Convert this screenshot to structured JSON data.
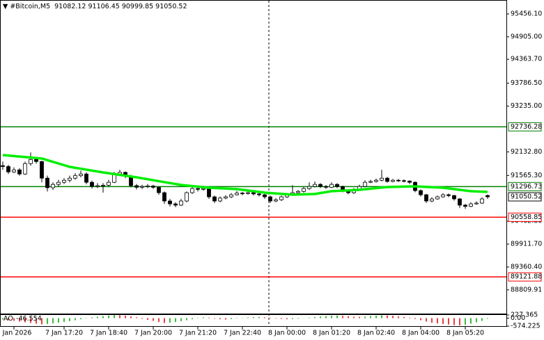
{
  "chart_data": {
    "type": "candlestick",
    "symbol": "#Bitcoin,M5",
    "ohlc": [
      [
        91800,
        91900,
        91700,
        91780
      ],
      [
        91780,
        91820,
        91600,
        91650
      ],
      [
        91650,
        91760,
        91620,
        91700
      ],
      [
        91700,
        91740,
        91560,
        91600
      ],
      [
        91600,
        91900,
        91580,
        91850
      ],
      [
        91850,
        92120,
        91800,
        91950
      ],
      [
        91950,
        92000,
        91850,
        91900
      ],
      [
        91900,
        91920,
        91400,
        91500
      ],
      [
        91500,
        91560,
        91180,
        91270
      ],
      [
        91270,
        91400,
        91220,
        91350
      ],
      [
        91350,
        91460,
        91300,
        91400
      ],
      [
        91400,
        91500,
        91360,
        91450
      ],
      [
        91450,
        91560,
        91400,
        91500
      ],
      [
        91500,
        91620,
        91460,
        91560
      ],
      [
        91560,
        91680,
        91520,
        91600
      ],
      [
        91600,
        91640,
        91350,
        91400
      ],
      [
        91400,
        91440,
        91250,
        91300
      ],
      [
        91300,
        91380,
        91260,
        91320
      ],
      [
        91320,
        91380,
        91150,
        91330
      ],
      [
        91330,
        91460,
        91300,
        91400
      ],
      [
        91400,
        91650,
        91380,
        91600
      ],
      [
        91600,
        91700,
        91560,
        91640
      ],
      [
        91640,
        91660,
        91500,
        91550
      ],
      [
        91550,
        91580,
        91280,
        91320
      ],
      [
        91320,
        91360,
        91230,
        91280
      ],
      [
        91280,
        91340,
        91240,
        91300
      ],
      [
        91300,
        91360,
        91260,
        91310
      ],
      [
        91310,
        91340,
        91240,
        91280
      ],
      [
        91280,
        91300,
        91100,
        91150
      ],
      [
        91150,
        91180,
        90880,
        90950
      ],
      [
        90950,
        91000,
        90820,
        90880
      ],
      [
        90880,
        90920,
        90800,
        90850
      ],
      [
        90850,
        91000,
        90830,
        90950
      ],
      [
        90950,
        91180,
        90920,
        91150
      ],
      [
        91150,
        91300,
        91120,
        91250
      ],
      [
        91250,
        91300,
        91180,
        91230
      ],
      [
        91230,
        91320,
        91200,
        91250
      ],
      [
        91250,
        91270,
        91000,
        91050
      ],
      [
        91050,
        91080,
        90900,
        90950
      ],
      [
        90950,
        91060,
        90920,
        91020
      ],
      [
        91020,
        91090,
        90990,
        91050
      ],
      [
        91050,
        91140,
        91020,
        91100
      ],
      [
        91100,
        91190,
        91080,
        91140
      ],
      [
        91140,
        91170,
        91090,
        91130
      ],
      [
        91130,
        91190,
        91100,
        91150
      ],
      [
        91150,
        91170,
        91080,
        91120
      ],
      [
        91120,
        91140,
        91060,
        91100
      ],
      [
        91100,
        91120,
        91000,
        91050
      ],
      [
        91050,
        91080,
        90900,
        90950
      ],
      [
        90950,
        91020,
        90920,
        90980
      ],
      [
        90980,
        91080,
        90950,
        91050
      ],
      [
        91050,
        91140,
        91020,
        91100
      ],
      [
        91100,
        91330,
        91080,
        91150
      ],
      [
        91150,
        91220,
        91120,
        91180
      ],
      [
        91180,
        91290,
        91150,
        91250
      ],
      [
        91250,
        91400,
        91220,
        91300
      ],
      [
        91300,
        91420,
        91280,
        91350
      ],
      [
        91350,
        91380,
        91260,
        91300
      ],
      [
        91300,
        91330,
        91240,
        91280
      ],
      [
        91280,
        91400,
        91260,
        91350
      ],
      [
        91350,
        91380,
        91260,
        91300
      ],
      [
        91300,
        91320,
        91160,
        91200
      ],
      [
        91200,
        91220,
        91110,
        91150
      ],
      [
        91150,
        91260,
        91120,
        91230
      ],
      [
        91230,
        91340,
        91200,
        91300
      ],
      [
        91300,
        91450,
        91280,
        91400
      ],
      [
        91400,
        91460,
        91380,
        91420
      ],
      [
        91420,
        91490,
        91390,
        91450
      ],
      [
        91450,
        91700,
        91420,
        91500
      ],
      [
        91500,
        91530,
        91390,
        91420
      ],
      [
        91420,
        91480,
        91400,
        91450
      ],
      [
        91450,
        91480,
        91410,
        91440
      ],
      [
        91440,
        91470,
        91400,
        91430
      ],
      [
        91430,
        91450,
        91360,
        91400
      ],
      [
        91400,
        91420,
        91160,
        91200
      ],
      [
        91200,
        91230,
        91060,
        91100
      ],
      [
        91100,
        91120,
        90900,
        90950
      ],
      [
        90950,
        91040,
        90920,
        91000
      ],
      [
        91000,
        91080,
        90980,
        91050
      ],
      [
        91050,
        91140,
        91030,
        91100
      ],
      [
        91100,
        91130,
        91040,
        91080
      ],
      [
        91080,
        91100,
        90960,
        91000
      ],
      [
        91000,
        91020,
        90780,
        90850
      ],
      [
        90850,
        90880,
        90760,
        90820
      ],
      [
        90820,
        90920,
        90800,
        90880
      ],
      [
        90880,
        90940,
        90860,
        90900
      ],
      [
        90900,
        91040,
        90880,
        91000
      ],
      [
        91082.12,
        91106.45,
        90999.85,
        91050.52
      ]
    ],
    "ma": {
      "color": "#00ee00",
      "x": [
        0,
        7,
        12,
        18,
        24,
        29,
        32,
        37,
        42,
        47,
        52,
        56,
        59,
        64,
        69,
        74,
        79,
        84,
        87
      ],
      "values": [
        92057,
        91973,
        91772,
        91638,
        91520,
        91404,
        91337,
        91270,
        91236,
        91152,
        91102,
        91119,
        91186,
        91219,
        91286,
        91303,
        91270,
        91186,
        91169
      ]
    },
    "levels": [
      {
        "value": 92736.28,
        "color": "#008000"
      },
      {
        "value": 91296.73,
        "color": "#008000"
      },
      {
        "value": 90558.85,
        "color": "#ff0000"
      },
      {
        "value": 89121.88,
        "color": "#ff0000"
      }
    ],
    "xlim": [
      -0.5,
      90.125
    ],
    "ylim": [
      88237.9,
      95791.05
    ],
    "yticks": [
      {
        "value": 95456.1,
        "label": "95456.10"
      },
      {
        "value": 94905,
        "label": "94905.00"
      },
      {
        "value": 94363.7,
        "label": "94363.70"
      },
      {
        "value": 93786.5,
        "label": "93786.50"
      },
      {
        "value": 93235,
        "label": "93235.00"
      },
      {
        "value": 92132.8,
        "label": "92132.80"
      },
      {
        "value": 91565.3,
        "label": "91565.30"
      },
      {
        "value": 90462.8,
        "label": "90462.80"
      },
      {
        "value": 89911.7,
        "label": "89911.70"
      },
      {
        "value": 89360.4,
        "label": "89360.40"
      },
      88809.91
    ],
    "xticks": [
      {
        "value": 2,
        "label": "7 Jan 2026"
      },
      {
        "value": 11,
        "label": "7 Jan 17:20"
      },
      {
        "value": 19,
        "label": "7 Jan 18:40"
      },
      {
        "value": 27,
        "label": "7 Jan 20:00"
      },
      {
        "value": 35,
        "label": "7 Jan 21:20"
      },
      {
        "value": 43,
        "label": "7 Jan 22:40"
      },
      {
        "value": 51,
        "label": "8 Jan 00:00"
      },
      {
        "value": 59,
        "label": "8 Jan 01:20"
      },
      {
        "value": 67,
        "label": "8 Jan 02:40"
      },
      {
        "value": 75,
        "label": "8 Jan 04:00"
      },
      {
        "value": 83,
        "label": "8 Jan 05:20"
      }
    ],
    "ao": {
      "label": "AO",
      "rising_color": "#00a000",
      "falling_color": "#e00000",
      "ylim": [
        -574.225,
        227.365
      ],
      "yticks": [
        227.365,
        {
          "value": 0,
          "label": "0.00"
        },
        -574.225
      ],
      "values": [
        -100,
        -150,
        -200,
        -250,
        -300,
        -350,
        -400,
        -450,
        -420,
        -380,
        -330,
        -280,
        -220,
        -150,
        -80,
        20,
        60,
        100,
        140,
        180,
        220,
        200,
        170,
        120,
        60,
        -50,
        -120,
        -200,
        -280,
        -350,
        -330,
        -280,
        -220,
        -150,
        -80,
        30,
        60,
        40,
        -40,
        -80,
        -100,
        -70,
        -30,
        20,
        50,
        70,
        80,
        60,
        30,
        -30,
        -60,
        -80,
        -70,
        -40,
        -10,
        40,
        80,
        120,
        150,
        170,
        180,
        160,
        130,
        100,
        90,
        110,
        140,
        170,
        200,
        190,
        160,
        120,
        80,
        40,
        -60,
        -150,
        -250,
        -330,
        -380,
        -420,
        -460,
        -500,
        -520,
        -480,
        -400,
        -300,
        -200,
        -46.554
      ]
    }
  }
}
